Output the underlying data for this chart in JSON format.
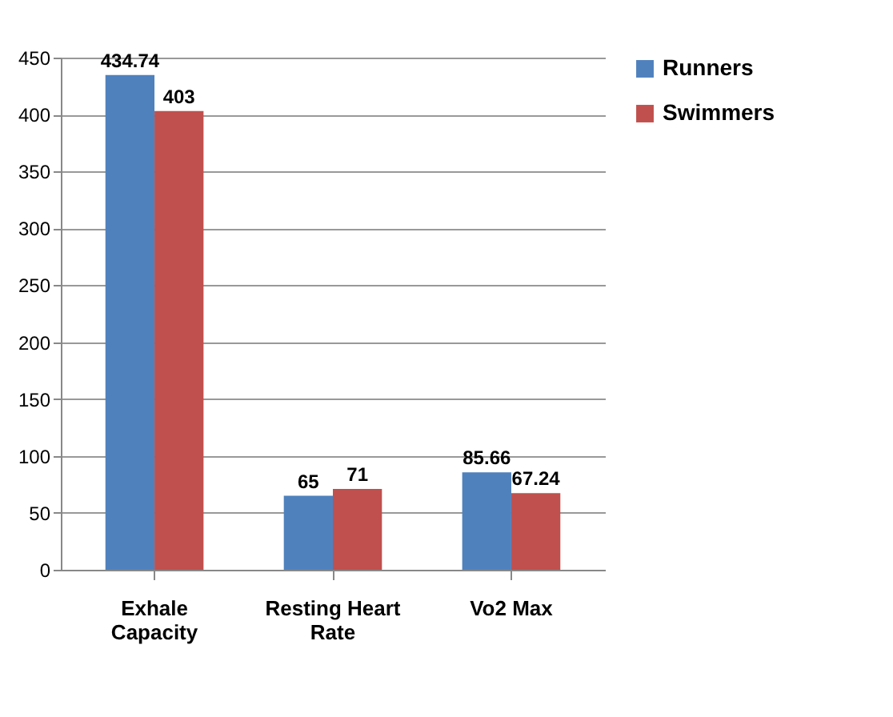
{
  "chart_data": {
    "type": "bar",
    "categories": [
      "Exhale Capacity",
      "Resting Heart Rate",
      "Vo2 Max"
    ],
    "series": [
      {
        "name": "Runners",
        "color": "#4f81bd",
        "values": [
          434.74,
          65,
          85.66
        ]
      },
      {
        "name": "Swimmers",
        "color": "#c0504d",
        "values": [
          403,
          71,
          67.24
        ]
      }
    ],
    "ylim": [
      0,
      450
    ],
    "yticks": [
      0,
      50,
      100,
      150,
      200,
      250,
      300,
      350,
      400,
      450
    ],
    "grid": "y",
    "legend": "right",
    "data_labels": true
  }
}
